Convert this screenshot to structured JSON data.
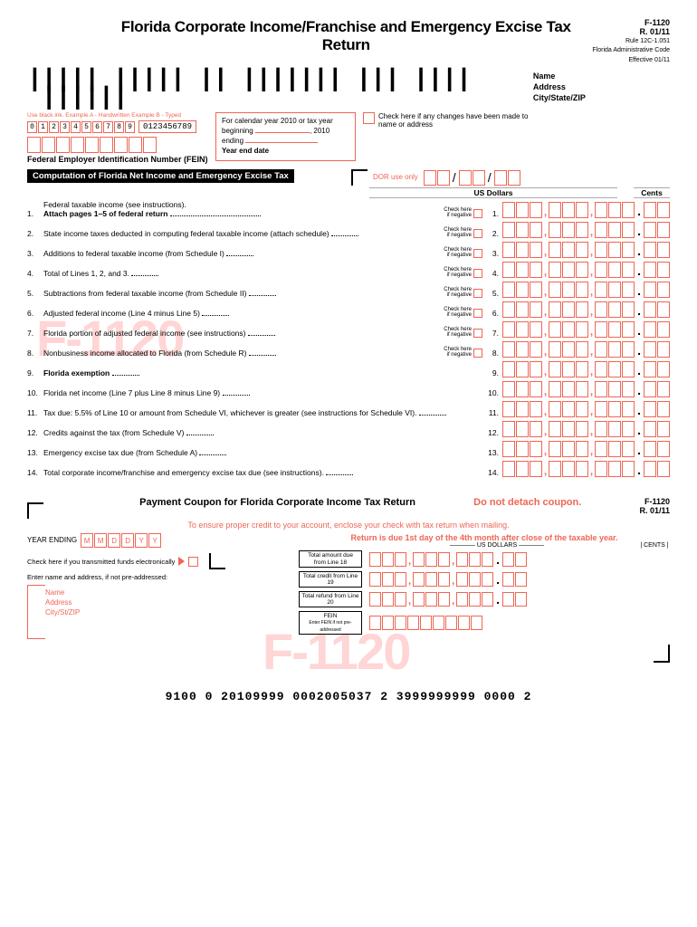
{
  "header": {
    "title": "Florida Corporate Income/Franchise and Emergency Excise Tax Return",
    "form_code": "F-1120",
    "revision": "R. 01/11",
    "rule": "Rule 12C-1.051",
    "admin": "Florida Administrative Code",
    "effective": "Effective 01/11"
  },
  "name_block": {
    "name": "Name",
    "address": "Address",
    "csz": "City/State/ZIP"
  },
  "example": {
    "label": "Use black ink.   Example A - Handwritten  Example B - Typed",
    "hand": [
      "0",
      "1",
      "2",
      "3",
      "4",
      "5",
      "6",
      "7",
      "8",
      "9"
    ],
    "typed": "0123456789"
  },
  "fein_label": "Federal Employer Identification Number (FEIN)",
  "section_title": "Computation of Florida Net Income and Emergency Excise Tax",
  "year_block": {
    "l1": "For calendar year 2010 or tax year",
    "l2": "beginning",
    "l2b": ", 2010",
    "l3": "ending",
    "l4": "Year end date"
  },
  "check_changes": "Check here if any changes have been made to name or address",
  "dor": "DOR use only",
  "cols": {
    "usd": "US Dollars",
    "cents": "Cents"
  },
  "lines": [
    {
      "n": "1.",
      "text": "Federal taxable income (see instructions).",
      "sub": "Attach pages 1–5 of federal return",
      "neg": true
    },
    {
      "n": "2.",
      "text": "State income taxes deducted in computing federal taxable income (attach schedule)",
      "neg": true
    },
    {
      "n": "3.",
      "text": "Additions to federal taxable income (from Schedule I)",
      "neg": true
    },
    {
      "n": "4.",
      "text": "Total of Lines 1, 2, and 3.",
      "neg": true
    },
    {
      "n": "5.",
      "text": "Subtractions from federal taxable income (from Schedule II)",
      "neg": true
    },
    {
      "n": "6.",
      "text": "Adjusted federal income (Line 4 minus Line 5)",
      "neg": true
    },
    {
      "n": "7.",
      "text": "Florida portion of adjusted federal income (see instructions)",
      "neg": true
    },
    {
      "n": "8.",
      "text": "Nonbusiness income allocated to Florida (from Schedule R)",
      "neg": true
    },
    {
      "n": "9.",
      "text": "Florida exemption",
      "bold": true,
      "neg": false
    },
    {
      "n": "10.",
      "text": "Florida net income (Line 7 plus Line 8 minus Line 9)",
      "neg": false
    },
    {
      "n": "11.",
      "text": "Tax due: 5.5% of Line 10 or amount from Schedule VI, whichever is greater (see instructions for Schedule VI).",
      "neg": false
    },
    {
      "n": "12.",
      "text": "Credits against the tax (from Schedule V)",
      "neg": false
    },
    {
      "n": "13.",
      "text": "Emergency excise tax due (from Schedule A)",
      "neg": false
    },
    {
      "n": "14.",
      "text": "Total corporate income/franchise and emergency excise tax due (see instructions).",
      "neg": false
    }
  ],
  "check_neg": "Check here if negative",
  "coupon": {
    "title": "Payment Coupon for Florida Corporate Income Tax Return",
    "no_detach": "Do not detach coupon.",
    "sub": "To ensure proper credit to your account, enclose your check with tax return when mailing.",
    "due": "Return is due 1st day of the 4th month after close of the taxable year.",
    "year_ending": "YEAR ENDING",
    "ye_ph": [
      "M",
      "M",
      "D",
      "D",
      "Y",
      "Y"
    ],
    "electron": "Check here if you transmitted funds electronically",
    "enter_name": "Enter name and address, if not pre-addressed:",
    "name": "Name",
    "address": "Address",
    "csz": "City/St/ZIP",
    "usd": "US DOLLARS",
    "cents": "CENTS",
    "rows": [
      {
        "label": "Total amount due from Line 18"
      },
      {
        "label": "Total credit from Line 19"
      },
      {
        "label": "Total refund from Line 20"
      },
      {
        "label": "FEIN",
        "sub": "Enter FEIN if not pre-addressed"
      }
    ]
  },
  "bottom_code": "9100  0  20109999  0002005037  2  3999999999  0000  2",
  "colors": {
    "pink": "#e65",
    "watermark": "#ffd5d5"
  }
}
